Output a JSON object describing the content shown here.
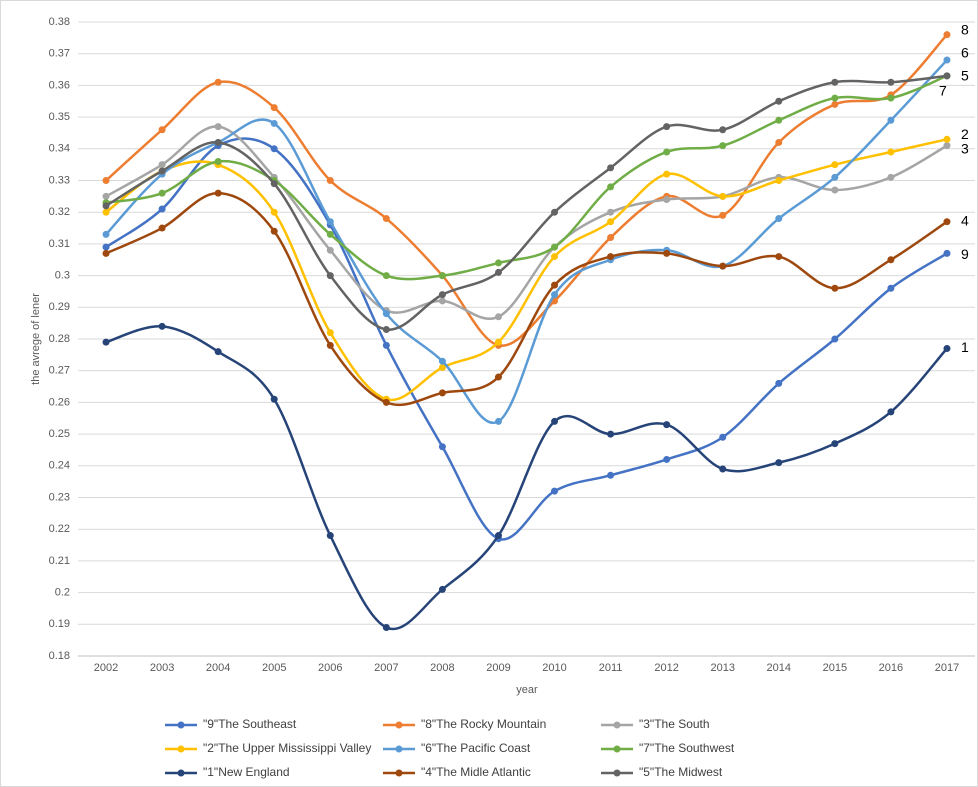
{
  "chart_data": {
    "type": "line",
    "x_label": "year",
    "y_label": "the avrege of lener",
    "x": [
      2002,
      2003,
      2004,
      2005,
      2006,
      2007,
      2008,
      2009,
      2010,
      2011,
      2012,
      2013,
      2014,
      2015,
      2016,
      2017
    ],
    "ylim": [
      0.18,
      0.38
    ],
    "yticks": [
      0.18,
      0.19,
      0.2,
      0.21,
      0.22,
      0.23,
      0.24,
      0.25,
      0.26,
      0.27,
      0.28,
      0.29,
      0.3,
      0.31,
      0.32,
      0.33,
      0.34,
      0.35,
      0.36,
      0.37,
      0.38
    ],
    "grid": true,
    "legend": "bottom",
    "series": [
      {
        "name": "\"9\"The Southeast",
        "end_label": "9",
        "color": "#4472c4",
        "values": [
          0.309,
          0.321,
          0.341,
          0.34,
          0.316,
          0.278,
          0.246,
          0.217,
          0.232,
          0.237,
          0.242,
          0.249,
          0.266,
          0.28,
          0.296,
          0.307
        ]
      },
      {
        "name": "\"8\"The Rocky Mountain",
        "end_label": "8",
        "color": "#ed7d31",
        "values": [
          0.33,
          0.346,
          0.361,
          0.353,
          0.33,
          0.318,
          0.3,
          0.278,
          0.292,
          0.312,
          0.325,
          0.319,
          0.342,
          0.354,
          0.357,
          0.376
        ]
      },
      {
        "name": "\"3\"The South",
        "end_label": "3",
        "color": "#a5a5a5",
        "values": [
          0.325,
          0.335,
          0.347,
          0.331,
          0.308,
          0.289,
          0.292,
          0.287,
          0.309,
          0.32,
          0.324,
          0.325,
          0.331,
          0.327,
          0.331,
          0.341
        ]
      },
      {
        "name": "\"2\"The Upper Mississippi Valley",
        "end_label": "2",
        "color": "#ffc000",
        "values": [
          0.32,
          0.333,
          0.335,
          0.32,
          0.282,
          0.261,
          0.271,
          0.279,
          0.306,
          0.317,
          0.332,
          0.325,
          0.33,
          0.335,
          0.339,
          0.343
        ]
      },
      {
        "name": "\"6\"The Pacific Coast",
        "end_label": "6",
        "color": "#5b9bd5",
        "values": [
          0.313,
          0.332,
          0.342,
          0.348,
          0.317,
          0.288,
          0.273,
          0.254,
          0.294,
          0.305,
          0.308,
          0.303,
          0.318,
          0.331,
          0.349,
          0.368
        ]
      },
      {
        "name": "\"7\"The Southwest",
        "end_label": "7",
        "color": "#70ad47",
        "values": [
          0.323,
          0.326,
          0.336,
          0.33,
          0.313,
          0.3,
          0.3,
          0.304,
          0.309,
          0.328,
          0.339,
          0.341,
          0.349,
          0.356,
          0.356,
          0.363
        ]
      },
      {
        "name": "\"1\"New England",
        "end_label": "1",
        "color": "#264478",
        "values": [
          0.279,
          0.284,
          0.276,
          0.261,
          0.218,
          0.189,
          0.201,
          0.218,
          0.254,
          0.25,
          0.253,
          0.239,
          0.241,
          0.247,
          0.257,
          0.277
        ]
      },
      {
        "name": "\"4\"The Midle Atlantic",
        "end_label": "4",
        "color": "#9e480e",
        "values": [
          0.307,
          0.315,
          0.326,
          0.314,
          0.278,
          0.26,
          0.263,
          0.268,
          0.297,
          0.306,
          0.307,
          0.303,
          0.306,
          0.296,
          0.305,
          0.317
        ]
      },
      {
        "name": "\"5\"The Midwest",
        "end_label": "5",
        "color": "#636363",
        "values": [
          0.322,
          0.333,
          0.342,
          0.329,
          0.3,
          0.283,
          0.294,
          0.301,
          0.32,
          0.334,
          0.347,
          0.346,
          0.355,
          0.361,
          0.361,
          0.363
        ]
      }
    ]
  }
}
